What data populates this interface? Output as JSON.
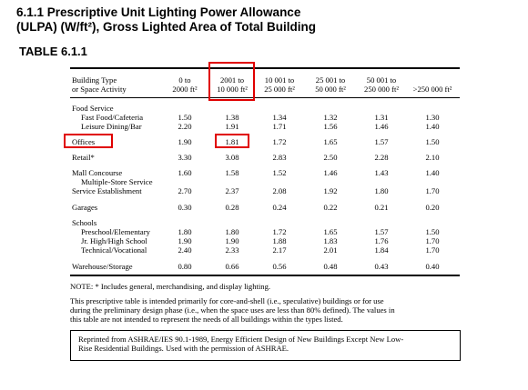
{
  "heading": {
    "line1": "6.1.1    Prescriptive Unit Lighting Power Allowance",
    "line2": "(ULPA) (W/ft²), Gross Lighted Area of Total Building"
  },
  "table_label": "TABLE 6.1.1",
  "columns": {
    "type_line1": "Building Type",
    "type_line2": "or Space Activity",
    "c1_line1": "0 to",
    "c1_line2": "2000 ft²",
    "c2_line1": "2001 to",
    "c2_line2": "10 000 ft²",
    "c3_line1": "10 001 to",
    "c3_line2": "25 000 ft²",
    "c4_line1": "25 001 to",
    "c4_line2": "50 000 ft²",
    "c5_line1": "50 001 to",
    "c5_line2": "250 000 ft²",
    "c6_line1": ">250 000 ft²"
  },
  "rows": {
    "food_service": "Food Service",
    "fast_food": {
      "label": "Fast Food/Cafeteria",
      "v": [
        "1.50",
        "1.38",
        "1.34",
        "1.32",
        "1.31",
        "1.30"
      ]
    },
    "leisure": {
      "label": "Leisure Dining/Bar",
      "v": [
        "2.20",
        "1.91",
        "1.71",
        "1.56",
        "1.46",
        "1.40"
      ]
    },
    "offices": {
      "label": "Offices",
      "v": [
        "1.90",
        "1.81",
        "1.72",
        "1.65",
        "1.57",
        "1.50"
      ]
    },
    "retail": {
      "label": "Retail*",
      "v": [
        "3.30",
        "3.08",
        "2.83",
        "2.50",
        "2.28",
        "2.10"
      ]
    },
    "mall": {
      "label": "Mall Concourse",
      "label2": "Multiple-Store Service",
      "v": [
        "1.60",
        "1.58",
        "1.52",
        "1.46",
        "1.43",
        "1.40"
      ]
    },
    "service": {
      "label": "Service Establishment",
      "v": [
        "2.70",
        "2.37",
        "2.08",
        "1.92",
        "1.80",
        "1.70"
      ]
    },
    "garages": {
      "label": "Garages",
      "v": [
        "0.30",
        "0.28",
        "0.24",
        "0.22",
        "0.21",
        "0.20"
      ]
    },
    "schools": "Schools",
    "preschool": {
      "label": "Preschool/Elementary",
      "v": [
        "1.80",
        "1.80",
        "1.72",
        "1.65",
        "1.57",
        "1.50"
      ]
    },
    "jrhigh": {
      "label": "Jr. High/High School",
      "v": [
        "1.90",
        "1.90",
        "1.88",
        "1.83",
        "1.76",
        "1.70"
      ]
    },
    "technical": {
      "label": "Technical/Vocational",
      "v": [
        "2.40",
        "2.33",
        "2.17",
        "2.01",
        "1.84",
        "1.70"
      ]
    },
    "warehouse": {
      "label": "Warehouse/Storage",
      "v": [
        "0.80",
        "0.66",
        "0.56",
        "0.48",
        "0.43",
        "0.40"
      ]
    }
  },
  "notes": {
    "note1": "NOTE:  * Includes general, merchandising, and display lighting.",
    "para1": "This prescriptive table is intended primarily for core-and-shell (i.e., speculative) buildings or for use",
    "para2": "during the preliminary design phase (i.e., when the space uses are less than 80% defined). The values in",
    "para3": "this table are not intended to represent the needs of all buildings within the types listed."
  },
  "reference": {
    "line1": "Reprinted from ASHRAE/IES 90.1-1989, Energy Efficient Design of New Buildings Except New Low-",
    "line2": "Rise Residential Buildings. Used with the permission of ASHRAE."
  },
  "highlight_color": "#e00000"
}
